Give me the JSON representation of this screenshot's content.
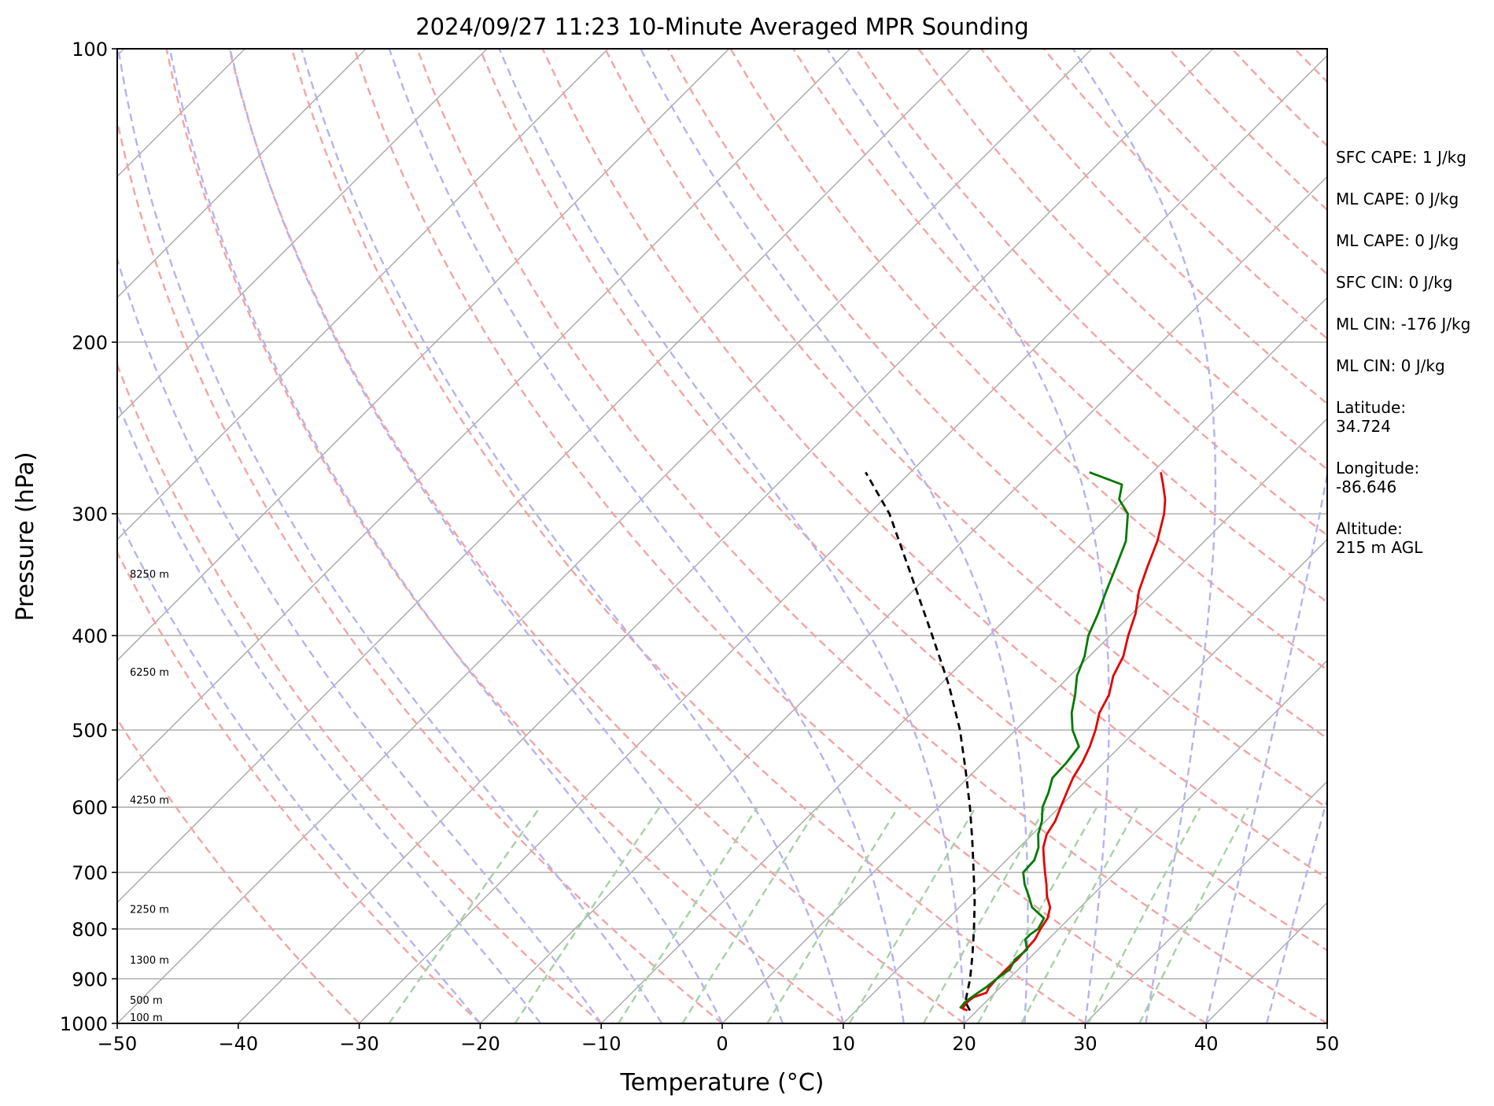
{
  "chart_data": {
    "type": "line",
    "title": "2024/09/27 11:23 10-Minute Averaged MPR Sounding",
    "xlabel": "Temperature (°C)",
    "ylabel": "Pressure (hPa)",
    "xlim": [
      -50,
      50
    ],
    "ylim": [
      1000,
      100
    ],
    "y_scale": "log",
    "grid": true,
    "x_ticks": [
      "−50",
      "−40",
      "−30",
      "−20",
      "−10",
      "0",
      "10",
      "20",
      "30",
      "40",
      "50"
    ],
    "y_ticks": [
      "100",
      "200",
      "300",
      "400",
      "500",
      "600",
      "700",
      "800",
      "900",
      "1000"
    ],
    "skew": "45 degree skew-T log-p",
    "colors": {
      "temperature": "#e30000",
      "dewpoint": "#007a00",
      "parcel": "#000000",
      "isotherms": "#a8a8a8",
      "dry_adiabats": "#f4a3a3",
      "moist_adiabats": "#b3b3f2",
      "mixing_ratio": "#a6d0a6"
    },
    "series": [
      {
        "role": "temperature",
        "pressure": [
          970,
          965,
          950,
          940,
          930,
          920,
          900,
          880,
          860,
          840,
          820,
          800,
          780,
          760,
          740,
          720,
          700,
          680,
          660,
          640,
          620,
          600,
          580,
          560,
          540,
          520,
          500,
          480,
          460,
          440,
          420,
          400,
          380,
          360,
          340,
          320,
          300,
          290,
          280,
          272
        ],
        "values": [
          19.2,
          18.6,
          18.5,
          18.6,
          19.3,
          19.1,
          19.0,
          19.0,
          19.1,
          19.0,
          18.9,
          18.5,
          18.2,
          17.5,
          16.3,
          15.3,
          14.2,
          13.1,
          12.0,
          11.2,
          10.8,
          10.1,
          9.4,
          8.7,
          8.2,
          7.5,
          6.6,
          5.5,
          4.8,
          3.6,
          2.8,
          1.5,
          0.3,
          -1.3,
          -2.6,
          -3.9,
          -5.6,
          -6.7,
          -8.1,
          -9.3
        ]
      },
      {
        "role": "dewpoint",
        "pressure": [
          965,
          950,
          930,
          920,
          900,
          880,
          860,
          840,
          820,
          810,
          800,
          780,
          760,
          740,
          720,
          700,
          680,
          660,
          640,
          620,
          600,
          580,
          560,
          540,
          520,
          500,
          480,
          460,
          440,
          420,
          400,
          380,
          360,
          340,
          320,
          300,
          290,
          280,
          272
        ],
        "values": [
          18.4,
          18.3,
          18.6,
          18.8,
          19.0,
          19.3,
          18.9,
          19.1,
          18.1,
          18.1,
          18.3,
          17.9,
          16.0,
          14.8,
          13.5,
          12.4,
          12.3,
          11.6,
          10.5,
          9.7,
          8.6,
          7.9,
          7.0,
          6.9,
          6.6,
          4.7,
          3.2,
          2.0,
          0.6,
          -0.4,
          -1.8,
          -2.8,
          -4.0,
          -5.2,
          -6.5,
          -8.6,
          -10.5,
          -11.5,
          -15.2
        ]
      },
      {
        "role": "parcel",
        "pressure": [
          970,
          950,
          900,
          850,
          800,
          750,
          700,
          650,
          600,
          550,
          500,
          450,
          400,
          350,
          300,
          272
        ],
        "values": [
          19.4,
          18.3,
          16.8,
          15.0,
          13.0,
          10.8,
          8.3,
          5.6,
          2.6,
          -0.8,
          -4.6,
          -9.2,
          -14.7,
          -21.0,
          -28.3,
          -33.7
        ]
      }
    ],
    "height_labels": [
      "8250 m",
      "6250 m",
      "4250 m",
      "2250 m",
      "1300 m",
      "500 m",
      "100 m"
    ],
    "height_label_pressures": [
      349,
      440,
      595,
      770,
      868,
      955,
      994
    ]
  },
  "stats": [
    "SFC CAPE: 1 J/kg",
    "ML CAPE: 0 J/kg",
    "ML CAPE: 0 J/kg",
    "SFC CIN: 0 J/kg",
    "ML CIN: -176 J/kg",
    "ML CIN: 0 J/kg",
    "Latitude:\n34.724",
    "Longitude:\n-86.646",
    "Altitude:\n215 m AGL"
  ]
}
